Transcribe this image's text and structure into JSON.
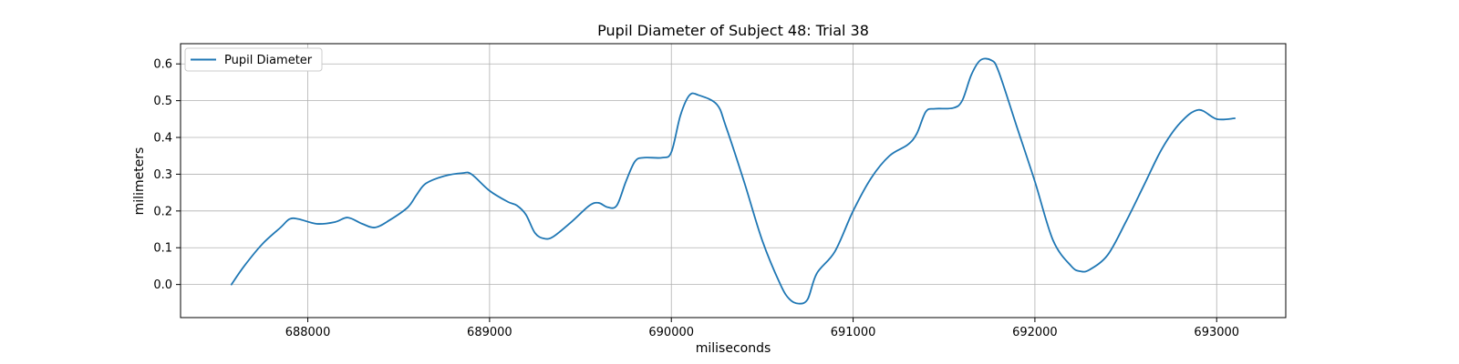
{
  "chart_data": {
    "type": "line",
    "title": "Pupil Diameter of Subject 48: Trial 38",
    "xlabel": "miliseconds",
    "ylabel": "milimeters",
    "xlim": [
      687300,
      693380
    ],
    "ylim": [
      -0.09,
      0.655
    ],
    "xticks": [
      688000,
      689000,
      690000,
      691000,
      692000,
      693000
    ],
    "yticks": [
      0.0,
      0.1,
      0.2,
      0.3,
      0.4,
      0.5,
      0.6
    ],
    "grid": true,
    "legend": {
      "position": "top-left",
      "entries": [
        "Pupil Diameter"
      ]
    },
    "colors": {
      "series": "#1f77b4",
      "grid": "#b0b0b0",
      "axis": "#000000"
    },
    "series": [
      {
        "name": "Pupil Diameter",
        "x": [
          687580,
          687650,
          687750,
          687850,
          687900,
          687950,
          688050,
          688150,
          688220,
          688300,
          688370,
          688450,
          688550,
          688600,
          688650,
          688750,
          688850,
          688900,
          689000,
          689100,
          689150,
          689200,
          689250,
          689300,
          689350,
          689450,
          689550,
          689600,
          689650,
          689700,
          689750,
          689800,
          689850,
          689950,
          690000,
          690050,
          690100,
          690150,
          690250,
          690300,
          690400,
          690500,
          690600,
          690650,
          690700,
          690750,
          690800,
          690900,
          691000,
          691100,
          691200,
          691300,
          691350,
          691400,
          691450,
          691550,
          691600,
          691650,
          691700,
          691760,
          691800,
          691900,
          692000,
          692100,
          692200,
          692250,
          692300,
          692400,
          692500,
          692600,
          692700,
          692800,
          692900,
          693000,
          693100
        ],
        "y": [
          0.0,
          0.05,
          0.11,
          0.155,
          0.178,
          0.178,
          0.165,
          0.17,
          0.182,
          0.165,
          0.155,
          0.175,
          0.21,
          0.245,
          0.275,
          0.295,
          0.303,
          0.3,
          0.255,
          0.225,
          0.215,
          0.19,
          0.14,
          0.125,
          0.13,
          0.17,
          0.215,
          0.222,
          0.21,
          0.215,
          0.28,
          0.335,
          0.345,
          0.345,
          0.36,
          0.46,
          0.515,
          0.515,
          0.49,
          0.43,
          0.28,
          0.12,
          0.0,
          -0.04,
          -0.052,
          -0.04,
          0.03,
          0.09,
          0.2,
          0.29,
          0.35,
          0.38,
          0.41,
          0.47,
          0.478,
          0.48,
          0.5,
          0.57,
          0.61,
          0.61,
          0.58,
          0.43,
          0.28,
          0.12,
          0.05,
          0.036,
          0.04,
          0.08,
          0.17,
          0.27,
          0.37,
          0.44,
          0.475,
          0.45,
          0.452
        ]
      }
    ]
  }
}
